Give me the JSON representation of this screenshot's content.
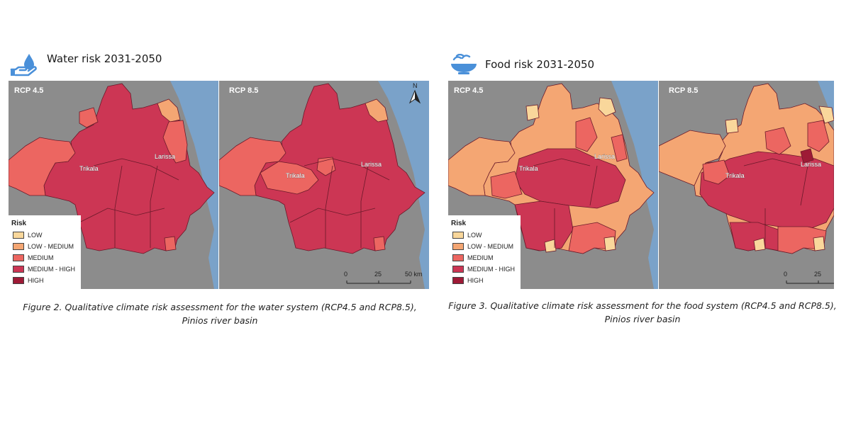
{
  "colors": {
    "low": "#f9d79b",
    "low_medium": "#f4a673",
    "medium": "#ec6661",
    "medium_high": "#cc3654",
    "high": "#9e1a36",
    "sea": "#7aa2c9",
    "background": "#8c8c8c",
    "icon": "#4a90d9"
  },
  "legend": {
    "title": "Risk",
    "items": [
      {
        "label": "LOW",
        "color": "#f9d79b"
      },
      {
        "label": "LOW - MEDIUM",
        "color": "#f4a673"
      },
      {
        "label": "MEDIUM",
        "color": "#ec6661"
      },
      {
        "label": "MEDIUM - HIGH",
        "color": "#cc3654"
      },
      {
        "label": "HIGH",
        "color": "#9e1a36"
      }
    ]
  },
  "water": {
    "icon": "water-hand-icon",
    "title": "Water risk 2031-2050",
    "maps": [
      {
        "scenario": "RCP 4.5",
        "cities": [
          "Trikala",
          "Larissa"
        ]
      },
      {
        "scenario": "RCP 8.5",
        "cities": [
          "Trikala",
          "Larissa"
        ],
        "north": "N",
        "scale": {
          "ticks": [
            "0",
            "25",
            "50 km"
          ]
        }
      }
    ],
    "caption_line1": "Figure 2. Qualitative climate risk assessment for the water system (RCP4.5 and RCP8.5),",
    "caption_line2": "Pinios river basin"
  },
  "food": {
    "icon": "food-bowl-icon",
    "title": "Food risk 2031-2050",
    "maps": [
      {
        "scenario": "RCP 4.5",
        "cities": [
          "Trikala",
          "Larissa"
        ]
      },
      {
        "scenario": "RCP 8.5",
        "cities": [
          "Trikala",
          "Larissa"
        ],
        "scale": {
          "ticks": [
            "0",
            "25"
          ]
        }
      }
    ],
    "caption_line1": "Figure 3. Qualitative climate risk assessment for the food system (RCP4.5 and RCP8.5),",
    "caption_line2": "Pinios river basin"
  }
}
